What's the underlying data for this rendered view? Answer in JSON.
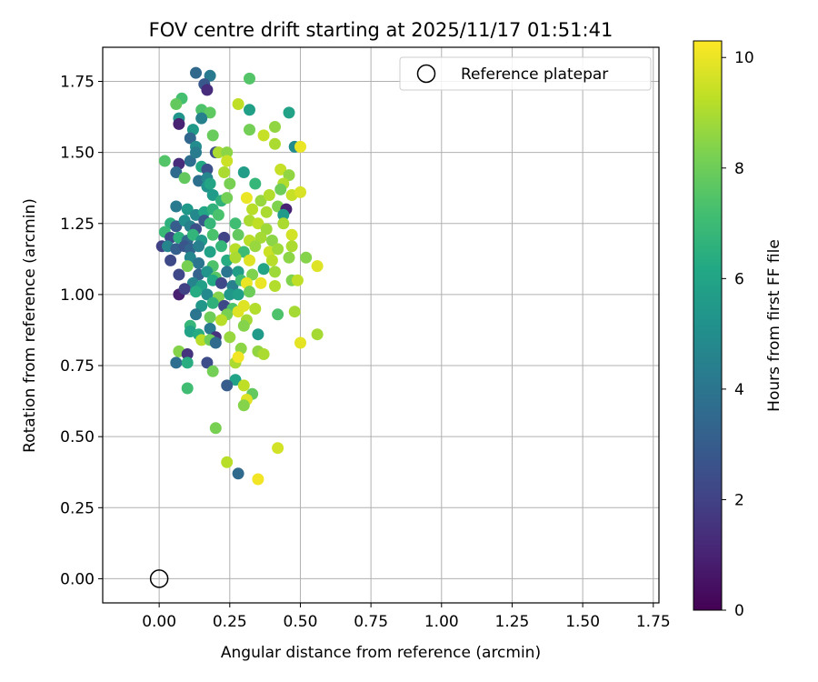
{
  "chart_data": {
    "type": "scatter",
    "title": "FOV centre drift starting at 2025/11/17 01:51:41",
    "xlabel": "Angular distance from reference (arcmin)",
    "ylabel": "Rotation from reference (arcmin)",
    "xlim": [
      -0.2,
      1.77
    ],
    "ylim": [
      -0.085,
      1.87
    ],
    "xticks": [
      0.0,
      0.25,
      0.5,
      0.75,
      1.0,
      1.25,
      1.5,
      1.75
    ],
    "xtick_labels": [
      "0.00",
      "0.25",
      "0.50",
      "0.75",
      "1.00",
      "1.25",
      "1.50",
      "1.75"
    ],
    "yticks": [
      0.0,
      0.25,
      0.5,
      0.75,
      1.0,
      1.25,
      1.5,
      1.75
    ],
    "ytick_labels": [
      "0.00",
      "0.25",
      "0.50",
      "0.75",
      "1.00",
      "1.25",
      "1.50",
      "1.75"
    ],
    "grid": true,
    "legend": {
      "position": "top-right",
      "label": "Reference platepar"
    },
    "reference_point": {
      "x": 0.0,
      "y": 0.0
    },
    "colorbar": {
      "label": "Hours from first FF file",
      "colormap": "viridis",
      "range": [
        0,
        10.3
      ],
      "ticks": [
        0,
        2,
        4,
        6,
        8,
        10
      ],
      "tick_labels": [
        "0",
        "2",
        "4",
        "6",
        "8",
        "10"
      ]
    },
    "points": [
      [
        0.13,
        1.78,
        3.5
      ],
      [
        0.18,
        1.77,
        4.2
      ],
      [
        0.16,
        1.74,
        2.8
      ],
      [
        0.17,
        1.72,
        1.3
      ],
      [
        0.32,
        1.76,
        7.5
      ],
      [
        0.08,
        1.69,
        7.2
      ],
      [
        0.06,
        1.67,
        7.8
      ],
      [
        0.15,
        1.65,
        7.4
      ],
      [
        0.18,
        1.64,
        7.7
      ],
      [
        0.28,
        1.67,
        9.3
      ],
      [
        0.32,
        1.65,
        5.8
      ],
      [
        0.46,
        1.64,
        5.9
      ],
      [
        0.07,
        1.62,
        5.3
      ],
      [
        0.07,
        1.6,
        1.0
      ],
      [
        0.12,
        1.58,
        5.5
      ],
      [
        0.15,
        1.62,
        4.5
      ],
      [
        0.19,
        1.56,
        7.9
      ],
      [
        0.32,
        1.58,
        8.1
      ],
      [
        0.37,
        1.56,
        9.4
      ],
      [
        0.41,
        1.59,
        8.6
      ],
      [
        0.11,
        1.55,
        3.4
      ],
      [
        0.13,
        1.52,
        5.0
      ],
      [
        0.41,
        1.53,
        9.0
      ],
      [
        0.48,
        1.52,
        4.9
      ],
      [
        0.5,
        1.52,
        10.0
      ],
      [
        0.02,
        1.47,
        7.5
      ],
      [
        0.07,
        1.46,
        1.3
      ],
      [
        0.11,
        1.47,
        3.7
      ],
      [
        0.13,
        1.5,
        4.3
      ],
      [
        0.2,
        1.5,
        2.4
      ],
      [
        0.21,
        1.5,
        9.0
      ],
      [
        0.24,
        1.5,
        8.5
      ],
      [
        0.24,
        1.47,
        9.5
      ],
      [
        0.15,
        1.45,
        6.2
      ],
      [
        0.17,
        1.44,
        2.5
      ],
      [
        0.06,
        1.43,
        3.6
      ],
      [
        0.09,
        1.41,
        7.8
      ],
      [
        0.14,
        1.4,
        3.8
      ],
      [
        0.17,
        1.41,
        4.7
      ],
      [
        0.23,
        1.43,
        9.0
      ],
      [
        0.3,
        1.43,
        5.7
      ],
      [
        0.43,
        1.44,
        9.4
      ],
      [
        0.46,
        1.42,
        8.6
      ],
      [
        0.17,
        1.38,
        5.2
      ],
      [
        0.18,
        1.39,
        6.0
      ],
      [
        0.25,
        1.39,
        8.2
      ],
      [
        0.34,
        1.39,
        6.8
      ],
      [
        0.44,
        1.39,
        9.1
      ],
      [
        0.19,
        1.35,
        5.6
      ],
      [
        0.22,
        1.33,
        6.6
      ],
      [
        0.24,
        1.34,
        8.1
      ],
      [
        0.31,
        1.34,
        10.0
      ],
      [
        0.36,
        1.33,
        8.7
      ],
      [
        0.39,
        1.35,
        9.1
      ],
      [
        0.43,
        1.37,
        8.0
      ],
      [
        0.47,
        1.35,
        9.4
      ],
      [
        0.5,
        1.36,
        9.7
      ],
      [
        0.06,
        1.31,
        4.2
      ],
      [
        0.1,
        1.3,
        5.5
      ],
      [
        0.13,
        1.28,
        4.8
      ],
      [
        0.16,
        1.29,
        6.1
      ],
      [
        0.19,
        1.3,
        6.6
      ],
      [
        0.33,
        1.3,
        9.2
      ],
      [
        0.38,
        1.29,
        9.0
      ],
      [
        0.42,
        1.31,
        8.3
      ],
      [
        0.45,
        1.3,
        1.0
      ],
      [
        0.44,
        1.28,
        5.6
      ],
      [
        0.04,
        1.25,
        6.5
      ],
      [
        0.06,
        1.24,
        3.0
      ],
      [
        0.09,
        1.26,
        5.1
      ],
      [
        0.11,
        1.24,
        4.5
      ],
      [
        0.13,
        1.23,
        2.5
      ],
      [
        0.16,
        1.26,
        2.8
      ],
      [
        0.18,
        1.25,
        6.8
      ],
      [
        0.21,
        1.28,
        7.3
      ],
      [
        0.27,
        1.25,
        7.1
      ],
      [
        0.32,
        1.26,
        9.0
      ],
      [
        0.35,
        1.25,
        9.3
      ],
      [
        0.38,
        1.23,
        8.8
      ],
      [
        0.44,
        1.25,
        9.0
      ],
      [
        0.02,
        1.22,
        6.9
      ],
      [
        0.04,
        1.2,
        2.2
      ],
      [
        0.07,
        1.2,
        6.5
      ],
      [
        0.1,
        1.19,
        3.5
      ],
      [
        0.12,
        1.21,
        6.7
      ],
      [
        0.15,
        1.19,
        5.5
      ],
      [
        0.19,
        1.21,
        7.3
      ],
      [
        0.23,
        1.2,
        2.1
      ],
      [
        0.28,
        1.21,
        7.8
      ],
      [
        0.32,
        1.19,
        9.2
      ],
      [
        0.36,
        1.2,
        8.9
      ],
      [
        0.4,
        1.19,
        8.5
      ],
      [
        0.47,
        1.21,
        9.6
      ],
      [
        0.01,
        1.17,
        2.0
      ],
      [
        0.03,
        1.17,
        4.6
      ],
      [
        0.06,
        1.16,
        3.1
      ],
      [
        0.09,
        1.17,
        2.7
      ],
      [
        0.11,
        1.16,
        3.3
      ],
      [
        0.14,
        1.17,
        4.4
      ],
      [
        0.18,
        1.15,
        5.9
      ],
      [
        0.22,
        1.17,
        6.8
      ],
      [
        0.27,
        1.16,
        9.2
      ],
      [
        0.3,
        1.15,
        7.0
      ],
      [
        0.34,
        1.17,
        8.7
      ],
      [
        0.39,
        1.15,
        9.5
      ],
      [
        0.42,
        1.16,
        8.8
      ],
      [
        0.47,
        1.17,
        9.0
      ],
      [
        0.04,
        1.12,
        2.3
      ],
      [
        0.11,
        1.13,
        4.7
      ],
      [
        0.14,
        1.11,
        4.0
      ],
      [
        0.19,
        1.1,
        7.4
      ],
      [
        0.24,
        1.12,
        6.3
      ],
      [
        0.27,
        1.13,
        9.0
      ],
      [
        0.32,
        1.12,
        9.8
      ],
      [
        0.4,
        1.12,
        9.2
      ],
      [
        0.46,
        1.13,
        8.5
      ],
      [
        0.52,
        1.13,
        8.4
      ],
      [
        0.56,
        1.1,
        9.8
      ],
      [
        0.07,
        1.07,
        2.2
      ],
      [
        0.1,
        1.1,
        8.2
      ],
      [
        0.14,
        1.07,
        3.2
      ],
      [
        0.17,
        1.08,
        5.3
      ],
      [
        0.2,
        1.06,
        7.6
      ],
      [
        0.24,
        1.08,
        4.0
      ],
      [
        0.28,
        1.08,
        5.7
      ],
      [
        0.33,
        1.07,
        8.3
      ],
      [
        0.37,
        1.09,
        6.0
      ],
      [
        0.41,
        1.08,
        8.8
      ],
      [
        0.12,
        1.04,
        4.6
      ],
      [
        0.15,
        1.03,
        5.8
      ],
      [
        0.19,
        1.05,
        6.2
      ],
      [
        0.22,
        1.04,
        2.2
      ],
      [
        0.26,
        1.03,
        4.4
      ],
      [
        0.29,
        1.05,
        7.1
      ],
      [
        0.31,
        1.04,
        10.0
      ],
      [
        0.36,
        1.04,
        10.0
      ],
      [
        0.41,
        1.03,
        9.1
      ],
      [
        0.47,
        1.05,
        8.3
      ],
      [
        0.49,
        1.05,
        9.3
      ],
      [
        0.07,
        1.0,
        0.9
      ],
      [
        0.09,
        1.02,
        2.0
      ],
      [
        0.13,
        1.01,
        6.3
      ],
      [
        0.17,
        1.0,
        4.8
      ],
      [
        0.21,
        0.99,
        8.4
      ],
      [
        0.25,
        1.0,
        5.4
      ],
      [
        0.28,
        1.0,
        5.8
      ],
      [
        0.32,
        1.01,
        8.0
      ],
      [
        0.15,
        0.96,
        5.4
      ],
      [
        0.19,
        0.97,
        6.6
      ],
      [
        0.23,
        0.96,
        2.3
      ],
      [
        0.26,
        0.95,
        7.4
      ],
      [
        0.3,
        0.96,
        9.8
      ],
      [
        0.34,
        0.95,
        9.1
      ],
      [
        0.13,
        0.93,
        4.0
      ],
      [
        0.18,
        0.92,
        8.0
      ],
      [
        0.24,
        0.93,
        8.2
      ],
      [
        0.28,
        0.94,
        9.8
      ],
      [
        0.31,
        0.91,
        8.9
      ],
      [
        0.42,
        0.93,
        7.4
      ],
      [
        0.48,
        0.94,
        8.9
      ],
      [
        0.11,
        0.89,
        6.8
      ],
      [
        0.18,
        0.88,
        4.2
      ],
      [
        0.22,
        0.91,
        9.2
      ],
      [
        0.3,
        0.89,
        8.4
      ],
      [
        0.11,
        0.87,
        5.9
      ],
      [
        0.14,
        0.86,
        6.3
      ],
      [
        0.2,
        0.85,
        1.5
      ],
      [
        0.35,
        0.86,
        5.6
      ],
      [
        0.15,
        0.84,
        9.2
      ],
      [
        0.18,
        0.84,
        8.0
      ],
      [
        0.2,
        0.83,
        3.6
      ],
      [
        0.25,
        0.85,
        8.7
      ],
      [
        0.07,
        0.8,
        8.4
      ],
      [
        0.1,
        0.79,
        1.5
      ],
      [
        0.29,
        0.81,
        8.5
      ],
      [
        0.35,
        0.8,
        8.6
      ],
      [
        0.37,
        0.79,
        9.0
      ],
      [
        0.5,
        0.83,
        9.9
      ],
      [
        0.56,
        0.86,
        8.9
      ],
      [
        0.06,
        0.76,
        3.7
      ],
      [
        0.1,
        0.76,
        6.4
      ],
      [
        0.17,
        0.76,
        2.4
      ],
      [
        0.19,
        0.73,
        8.1
      ],
      [
        0.27,
        0.76,
        9.0
      ],
      [
        0.28,
        0.78,
        10.1
      ],
      [
        0.27,
        0.7,
        5.9
      ],
      [
        0.24,
        0.68,
        3.0
      ],
      [
        0.1,
        0.67,
        7.1
      ],
      [
        0.3,
        0.68,
        9.3
      ],
      [
        0.33,
        0.65,
        7.8
      ],
      [
        0.31,
        0.63,
        9.8
      ],
      [
        0.3,
        0.61,
        8.4
      ],
      [
        0.2,
        0.53,
        8.2
      ],
      [
        0.42,
        0.46,
        9.6
      ],
      [
        0.24,
        0.41,
        9.2
      ],
      [
        0.28,
        0.37,
        3.6
      ],
      [
        0.35,
        0.35,
        10.1
      ]
    ]
  }
}
